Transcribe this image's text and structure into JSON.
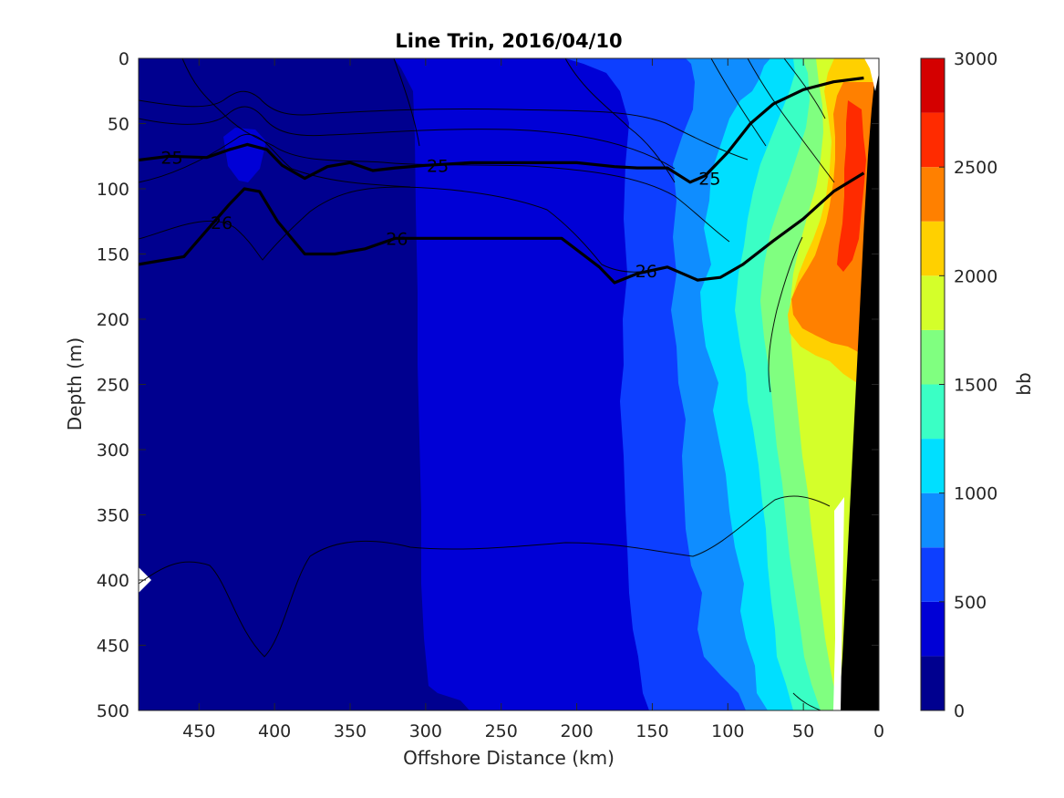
{
  "chart_data": {
    "type": "contour",
    "title": "Line Trin, 2016/04/10",
    "xlabel": "Offshore Distance (km)",
    "ylabel": "Depth (m)",
    "xlim": [
      490,
      0
    ],
    "ylim": [
      0,
      500
    ],
    "x_ticks": [
      "450",
      "400",
      "350",
      "300",
      "250",
      "200",
      "150",
      "100",
      "50",
      "0"
    ],
    "y_ticks": [
      "0",
      "50",
      "100",
      "150",
      "200",
      "250",
      "300",
      "350",
      "400",
      "450",
      "500"
    ],
    "x_axis_reversed": true,
    "y_axis_reversed": true,
    "colorbar": {
      "label": "bb",
      "range": [
        0,
        3000
      ],
      "ticks": [
        "0",
        "500",
        "1000",
        "1500",
        "2000",
        "2500",
        "3000"
      ],
      "levels": [
        0,
        250,
        500,
        750,
        1000,
        1250,
        1500,
        1750,
        2000,
        2250,
        2500,
        2750,
        3000
      ],
      "colors": [
        "#00008f",
        "#0000d6",
        "#0d3fff",
        "#0f8dff",
        "#00dfff",
        "#3affc5",
        "#80ff80",
        "#d4ff2a",
        "#ffd000",
        "#ff8000",
        "#ff2b00",
        "#d40000"
      ]
    },
    "density_contours": [
      {
        "label": "25",
        "points": [
          [
            490,
            78
          ],
          [
            470,
            75
          ],
          [
            445,
            76
          ],
          [
            430,
            70
          ],
          [
            418,
            66
          ],
          [
            405,
            70
          ],
          [
            395,
            82
          ],
          [
            380,
            92
          ],
          [
            365,
            83
          ],
          [
            350,
            80
          ],
          [
            335,
            86
          ],
          [
            320,
            84
          ],
          [
            300,
            82
          ],
          [
            270,
            80
          ],
          [
            240,
            80
          ],
          [
            200,
            80
          ],
          [
            175,
            83
          ],
          [
            160,
            84
          ],
          [
            140,
            84
          ],
          [
            125,
            95
          ],
          [
            115,
            90
          ],
          [
            100,
            72
          ],
          [
            85,
            50
          ],
          [
            70,
            35
          ],
          [
            50,
            24
          ],
          [
            30,
            18
          ],
          [
            10,
            15
          ]
        ]
      },
      {
        "label": "26",
        "points": [
          [
            490,
            158
          ],
          [
            460,
            152
          ],
          [
            445,
            132
          ],
          [
            430,
            112
          ],
          [
            420,
            100
          ],
          [
            410,
            102
          ],
          [
            398,
            125
          ],
          [
            380,
            150
          ],
          [
            360,
            150
          ],
          [
            340,
            146
          ],
          [
            320,
            138
          ],
          [
            300,
            138
          ],
          [
            270,
            138
          ],
          [
            240,
            138
          ],
          [
            210,
            138
          ],
          [
            185,
            160
          ],
          [
            175,
            172
          ],
          [
            160,
            165
          ],
          [
            140,
            160
          ],
          [
            120,
            170
          ],
          [
            105,
            168
          ],
          [
            90,
            158
          ],
          [
            70,
            140
          ],
          [
            50,
            123
          ],
          [
            30,
            102
          ],
          [
            10,
            88
          ]
        ]
      }
    ],
    "colorbar_range": [
      0,
      3000
    ]
  }
}
